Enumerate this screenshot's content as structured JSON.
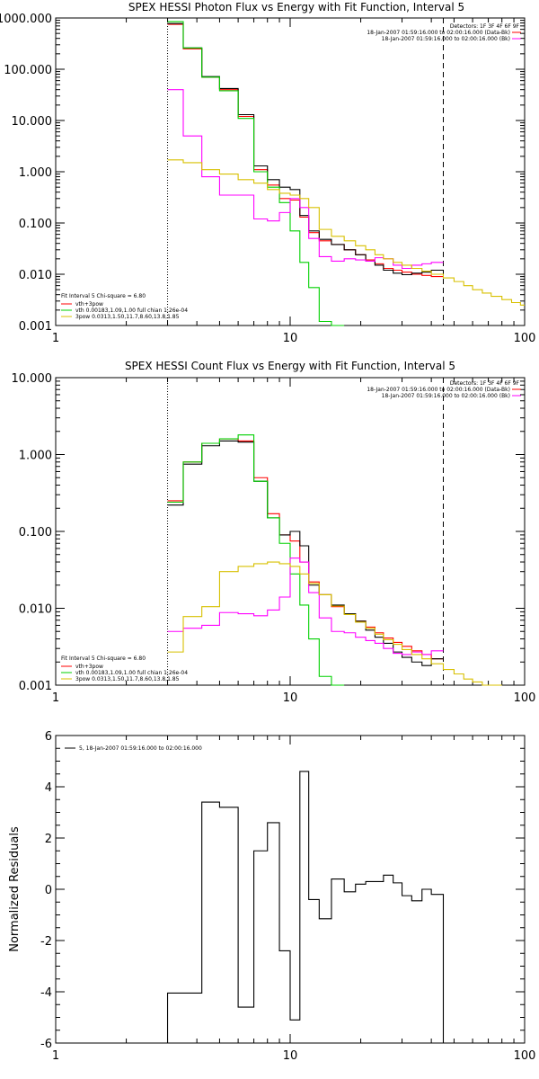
{
  "colors": {
    "black": "#000000",
    "red": "#ff0000",
    "green": "#00d000",
    "magenta": "#ff00ff",
    "yellow": "#d8c000"
  },
  "chart_data": [
    {
      "type": "line",
      "title": "SPEX HESSI Photon Flux vs Energy with Fit Function, Interval 5",
      "xscale": "log",
      "yscale": "log",
      "xlim": [
        1,
        100
      ],
      "ylim": [
        0.001,
        1000
      ],
      "xticks": [
        {
          "value": 1,
          "label": "1"
        },
        {
          "value": 10,
          "label": "10"
        },
        {
          "value": 100,
          "label": "100"
        }
      ],
      "yticks": [
        {
          "value": 0.001,
          "label": "0.001"
        },
        {
          "value": 0.01,
          "label": "0.010"
        },
        {
          "value": 0.1,
          "label": "0.100"
        },
        {
          "value": 1,
          "label": "1.000"
        },
        {
          "value": 10,
          "label": "10.000"
        },
        {
          "value": 100,
          "label": "100.000"
        },
        {
          "value": 1000,
          "label": "1000.000"
        }
      ],
      "vlines": [
        {
          "x": 3,
          "style": "dotted"
        },
        {
          "x": 45,
          "style": "dashed"
        }
      ],
      "header_legend": [
        "Detectors: 1F 3F 4F 6F 9F",
        "18-Jan-2007 01:59:16.000 to 02:00:16.000 (Data-Bk)",
        "18-Jan-2007 01:59:16.000 to 02:00:16.000 (Bk)"
      ],
      "fit_legend": [
        "Fit Interval 5    Chi-square = 6.80",
        "vth+3pow",
        "vth 0.00183,1.09,1.00  full chian 1.26e-04",
        "3pow 0.0313,1.50,11.7,8.60,13.8,1.85"
      ],
      "series": [
        {
          "name": "vth+3pow",
          "color": "red",
          "edges": [
            3,
            3.5,
            4.2,
            5,
            6,
            7,
            8,
            9,
            10,
            11,
            12,
            13.3,
            15,
            17,
            19,
            21,
            23,
            25,
            27.5,
            30,
            33,
            36.5,
            40,
            45
          ],
          "values": [
            750,
            250,
            70,
            40,
            12,
            1.1,
            0.55,
            0.3,
            0.28,
            0.13,
            0.065,
            0.045,
            0.038,
            0.03,
            0.024,
            0.019,
            0.016,
            0.013,
            0.012,
            0.011,
            0.01,
            0.0095,
            0.009
          ]
        },
        {
          "name": "",
          "color": "black",
          "edges": [
            3,
            3.5,
            4.2,
            5,
            6,
            7,
            8,
            9,
            10,
            11,
            12,
            13.3,
            15,
            17,
            19,
            21,
            23,
            25,
            27.5,
            30,
            33,
            36.5,
            40,
            45
          ],
          "values": [
            780,
            260,
            72,
            42,
            13,
            1.3,
            0.7,
            0.5,
            0.45,
            0.14,
            0.07,
            0.048,
            0.038,
            0.03,
            0.024,
            0.018,
            0.015,
            0.012,
            0.0105,
            0.0098,
            0.0105,
            0.011,
            0.012
          ]
        },
        {
          "name": "vth 0.00183,1.09,1.00  full chian 1.26e-04",
          "color": "green",
          "edges": [
            3,
            3.5,
            4.2,
            5,
            6,
            7,
            8,
            9,
            10,
            11,
            12,
            13.3,
            15,
            17
          ],
          "values": [
            850,
            260,
            70,
            38,
            11,
            1.0,
            0.5,
            0.25,
            0.07,
            0.017,
            0.0055,
            0.0012,
            0.0009
          ]
        },
        {
          "name": "",
          "color": "magenta",
          "edges": [
            3,
            3.5,
            4.2,
            5,
            6,
            7,
            8,
            9,
            10,
            11,
            12,
            13.3,
            15,
            17,
            19,
            21,
            23,
            25,
            27.5,
            30,
            33,
            36.5,
            40,
            45
          ],
          "values": [
            40,
            5,
            0.8,
            0.35,
            0.35,
            0.12,
            0.11,
            0.16,
            0.3,
            0.2,
            0.05,
            0.022,
            0.018,
            0.02,
            0.019,
            0.018,
            0.021,
            0.02,
            0.015,
            0.013,
            0.015,
            0.016,
            0.017
          ]
        },
        {
          "name": "3pow 0.0313,1.50,11.7,8.60,13.8,1.85",
          "color": "yellow",
          "edges": [
            3,
            3.5,
            4.2,
            5,
            6,
            7,
            8,
            9,
            10,
            11,
            12,
            13.3,
            15,
            17,
            19,
            21,
            23,
            25,
            27.5,
            30,
            33,
            36.5,
            40,
            45,
            50,
            55,
            60,
            66,
            72,
            80,
            88,
            96,
            100
          ],
          "values": [
            1.7,
            1.5,
            1.1,
            0.9,
            0.7,
            0.6,
            0.45,
            0.38,
            0.35,
            0.3,
            0.2,
            0.075,
            0.055,
            0.045,
            0.036,
            0.03,
            0.024,
            0.02,
            0.017,
            0.015,
            0.013,
            0.0115,
            0.01,
            0.0085,
            0.0072,
            0.006,
            0.005,
            0.0043,
            0.0037,
            0.0032,
            0.0028,
            0.0025
          ]
        }
      ]
    },
    {
      "type": "line",
      "title": "SPEX HESSI Count Flux vs Energy with Fit Function, Interval 5",
      "xscale": "log",
      "yscale": "log",
      "xlim": [
        1,
        100
      ],
      "ylim": [
        0.001,
        10
      ],
      "xticks": [
        {
          "value": 1,
          "label": "1"
        },
        {
          "value": 10,
          "label": "10"
        },
        {
          "value": 100,
          "label": "100"
        }
      ],
      "yticks": [
        {
          "value": 0.001,
          "label": "0.001"
        },
        {
          "value": 0.01,
          "label": "0.010"
        },
        {
          "value": 0.1,
          "label": "0.100"
        },
        {
          "value": 1,
          "label": "1.000"
        },
        {
          "value": 10,
          "label": "10.000"
        }
      ],
      "vlines": [
        {
          "x": 3,
          "style": "dotted"
        },
        {
          "x": 45,
          "style": "dashed"
        }
      ],
      "header_legend": [
        "Detectors: 1F 3F 4F 6F 9F",
        "18-Jan-2007 01:59:16.000 to 02:00:16.000 (Data-Bk)",
        "18-Jan-2007 01:59:16.000 to 02:00:16.000 (Bk)"
      ],
      "fit_legend": [
        "Fit Interval 5    Chi-square = 6.80",
        "vth+3pow",
        "vth 0.00183,1.09,1.00  full chian 1.26e-04",
        "3pow 0.0313,1.50,11.7,8.60,13.8,1.85"
      ],
      "series": [
        {
          "name": "vth+3pow",
          "color": "red",
          "edges": [
            3,
            3.5,
            4.2,
            5,
            6,
            7,
            8,
            9,
            10,
            11,
            12,
            13.3,
            15,
            17,
            19,
            21,
            23,
            25,
            27.5,
            30,
            33,
            36.5,
            40,
            45
          ],
          "values": [
            0.25,
            0.8,
            1.4,
            1.6,
            1.5,
            0.5,
            0.17,
            0.09,
            0.075,
            0.04,
            0.022,
            0.015,
            0.0105,
            0.0085,
            0.0068,
            0.0057,
            0.0048,
            0.0041,
            0.0036,
            0.0032,
            0.0028,
            0.0025,
            0.0022
          ]
        },
        {
          "name": "",
          "color": "black",
          "edges": [
            3,
            3.5,
            4.2,
            5,
            6,
            7,
            8,
            9,
            10,
            11,
            12,
            13.3,
            15,
            17,
            19,
            21,
            23,
            25,
            27.5,
            30,
            33,
            36.5,
            40,
            45
          ],
          "values": [
            0.22,
            0.75,
            1.3,
            1.5,
            1.45,
            0.45,
            0.15,
            0.09,
            0.1,
            0.065,
            0.02,
            0.015,
            0.011,
            0.0085,
            0.0068,
            0.0052,
            0.0042,
            0.0035,
            0.0027,
            0.0023,
            0.002,
            0.0018,
            0.0022
          ]
        },
        {
          "name": "vth 0.00183,1.09,1.00  full chian 1.26e-04",
          "color": "green",
          "edges": [
            3,
            3.5,
            4.2,
            5,
            6,
            7,
            8,
            9,
            10,
            11,
            12,
            13.3,
            15,
            17
          ],
          "values": [
            0.24,
            0.8,
            1.4,
            1.6,
            1.8,
            0.45,
            0.15,
            0.07,
            0.028,
            0.011,
            0.004,
            0.0013,
            0.0009
          ]
        },
        {
          "name": "",
          "color": "magenta",
          "edges": [
            3,
            3.5,
            4.2,
            5,
            6,
            7,
            8,
            9,
            10,
            11,
            12,
            13.3,
            15,
            17,
            19,
            21,
            23,
            25,
            27.5,
            30,
            33,
            36.5,
            40,
            45
          ],
          "values": [
            0.005,
            0.0055,
            0.006,
            0.0088,
            0.0085,
            0.008,
            0.0095,
            0.014,
            0.045,
            0.04,
            0.016,
            0.0075,
            0.005,
            0.0048,
            0.0042,
            0.0038,
            0.0035,
            0.003,
            0.0026,
            0.0025,
            0.0027,
            0.0025,
            0.0028
          ]
        },
        {
          "name": "3pow 0.0313,1.50,11.7,8.60,13.8,1.85",
          "color": "yellow",
          "edges": [
            3,
            3.5,
            4.2,
            5,
            6,
            7,
            8,
            9,
            10,
            11,
            12,
            13.3,
            15,
            17,
            19,
            21,
            23,
            25,
            27.5,
            30,
            33,
            36.5,
            40,
            45,
            50,
            55,
            60,
            66,
            72,
            80
          ],
          "values": [
            0.0027,
            0.0078,
            0.0105,
            0.03,
            0.035,
            0.038,
            0.04,
            0.038,
            0.035,
            0.028,
            0.021,
            0.015,
            0.0107,
            0.0083,
            0.0066,
            0.0055,
            0.0046,
            0.0039,
            0.0034,
            0.0029,
            0.0025,
            0.0022,
            0.0019,
            0.0016,
            0.0014,
            0.0012,
            0.0011,
            0.001,
            0.0009
          ]
        }
      ]
    },
    {
      "type": "line",
      "title": "",
      "xscale": "log",
      "yscale": "linear",
      "xlim": [
        1,
        100
      ],
      "ylim": [
        -6,
        6
      ],
      "ylabel": "Normalized Residuals",
      "xticks": [
        {
          "value": 1,
          "label": "1"
        },
        {
          "value": 10,
          "label": "10"
        },
        {
          "value": 100,
          "label": "100"
        }
      ],
      "yticks": [
        {
          "value": -6,
          "label": "-6"
        },
        {
          "value": -4,
          "label": "-4"
        },
        {
          "value": -2,
          "label": "-2"
        },
        {
          "value": 0,
          "label": "0"
        },
        {
          "value": 2,
          "label": "2"
        },
        {
          "value": 4,
          "label": "4"
        },
        {
          "value": 6,
          "label": "6"
        }
      ],
      "legend": "5, 18-Jan-2007 01:59:16.000 to 02:00:16.000",
      "series": [
        {
          "name": "5, 18-Jan-2007 01:59:16.000 to 02:00:16.000",
          "color": "black",
          "edges": [
            3,
            3.5,
            4.2,
            5,
            6,
            7,
            8,
            9,
            10,
            11,
            12,
            13.3,
            15,
            17,
            19,
            21,
            23,
            25,
            27.5,
            30,
            33,
            36.5,
            40,
            45
          ],
          "values": [
            -4.05,
            -4.05,
            3.4,
            3.2,
            -4.6,
            1.5,
            2.6,
            -2.4,
            -5.1,
            4.6,
            -0.4,
            -1.15,
            0.4,
            -0.1,
            0.2,
            0.3,
            0.3,
            0.55,
            0.25,
            -0.25,
            -0.45,
            0.0,
            -0.2
          ],
          "clip_to": -6
        }
      ]
    }
  ]
}
